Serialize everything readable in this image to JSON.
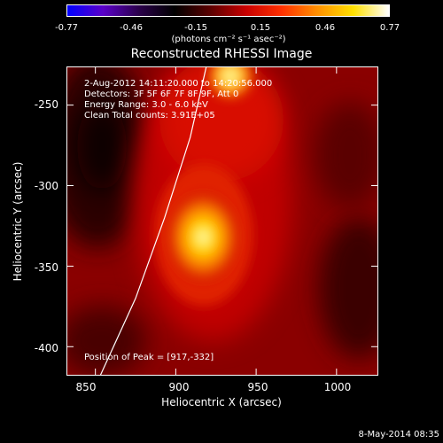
{
  "colorbar": {
    "ticks": [
      "-0.77",
      "-0.46",
      "-0.15",
      "0.15",
      "0.46",
      "0.77"
    ],
    "units": "(photons cm⁻² s⁻¹ asec⁻²)",
    "colors": [
      "#0000ff",
      "#5a00c8",
      "#2a004a",
      "#000000",
      "#5a0000",
      "#c80000",
      "#ff3000",
      "#ff9000",
      "#ffe000",
      "#ffffff"
    ]
  },
  "title": "Reconstructed RHESSI Image",
  "annotations": {
    "time": "2-Aug-2012 14:11:20.000 to 14:20:56.000",
    "detectors": "Detectors: 3F 5F 6F 7F 8F 9F, Att 0",
    "energy": "Energy Range: 3.0 - 6.0 keV",
    "clean": "Clean     Total counts: 3.91E+05",
    "peak": "Position of Peak = [917,-332]"
  },
  "footer": "8-May-2014 08:35",
  "chart_data": {
    "type": "heatmap",
    "title": "Reconstructed RHESSI Image",
    "xlabel": "Heliocentric X (arcsec)",
    "ylabel": "Heliocentric Y (arcsec)",
    "xlim": [
      832,
      1026
    ],
    "ylim": [
      -418,
      -226
    ],
    "xticks": [
      850,
      900,
      950,
      1000
    ],
    "yticks": [
      -250,
      -300,
      -350,
      -400
    ],
    "colorbar_range": [
      -0.77,
      0.77
    ],
    "peak_position": [
      917,
      -332
    ],
    "sources": [
      {
        "x": 917,
        "y": -332,
        "value": 0.77
      },
      {
        "x": 934,
        "y": -232,
        "value": 0.7
      }
    ],
    "limb_curve": [
      [
        853,
        -418
      ],
      [
        875,
        -370
      ],
      [
        893,
        -320
      ],
      [
        909,
        -270
      ],
      [
        919,
        -226
      ]
    ]
  }
}
